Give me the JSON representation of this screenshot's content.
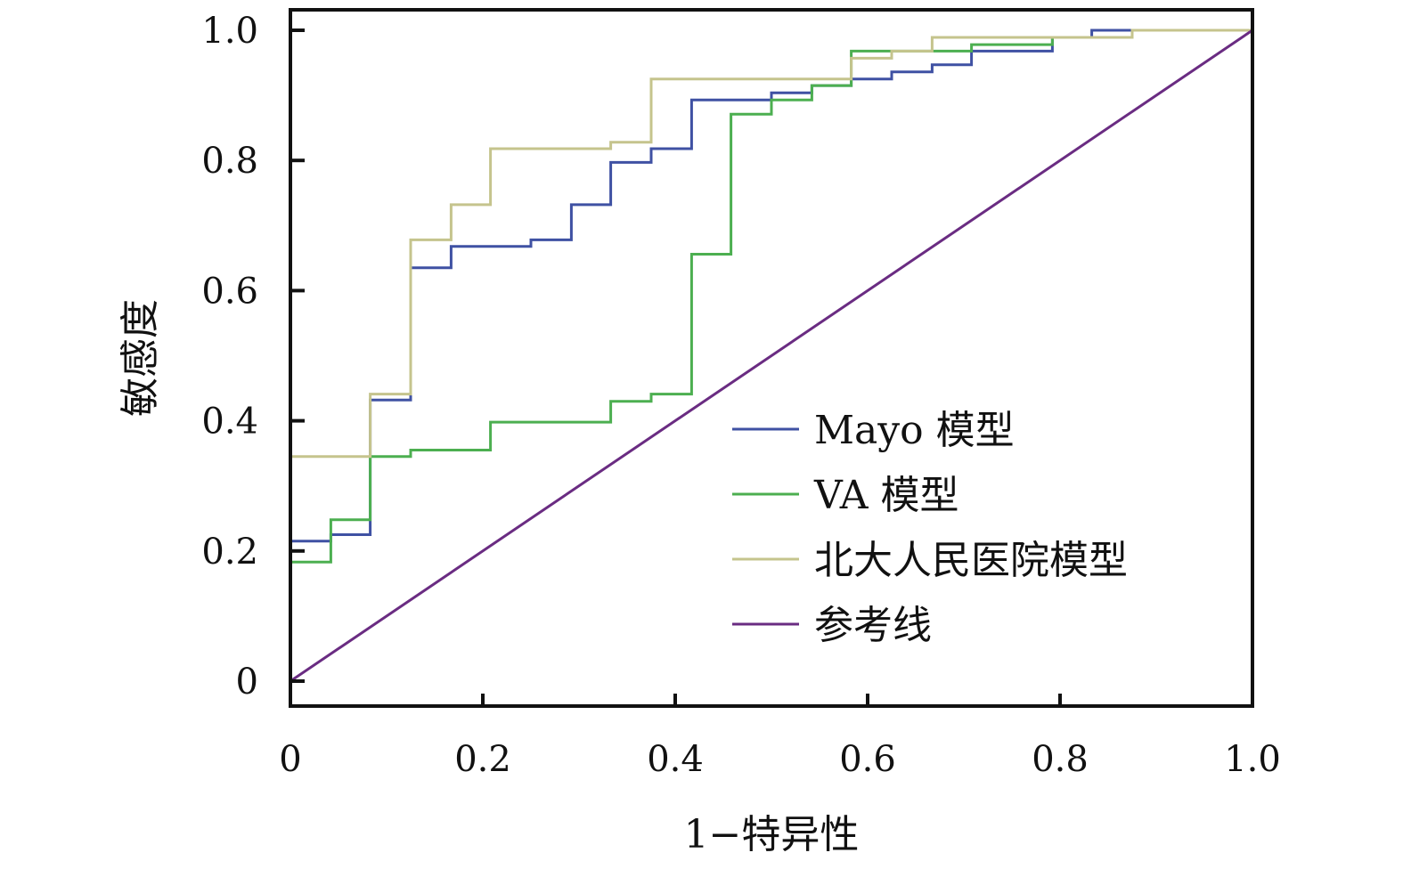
{
  "chart_data": {
    "type": "line",
    "title": "",
    "xlabel": "1−特异性",
    "ylabel": "敏感度",
    "xlim": [
      0,
      1
    ],
    "ylim": [
      0,
      1
    ],
    "grid": false,
    "legend_position": "bottom-right",
    "x_ticks": [
      {
        "value": 0,
        "label": "0"
      },
      {
        "value": 0.2,
        "label": "0.2"
      },
      {
        "value": 0.4,
        "label": "0.4"
      },
      {
        "value": 0.6,
        "label": "0.6"
      },
      {
        "value": 0.8,
        "label": "0.8"
      },
      {
        "value": 1.0,
        "label": "1.0"
      }
    ],
    "y_ticks": [
      {
        "value": 0,
        "label": "0"
      },
      {
        "value": 0.2,
        "label": "0.2"
      },
      {
        "value": 0.4,
        "label": "0.4"
      },
      {
        "value": 0.6,
        "label": "0.6"
      },
      {
        "value": 0.8,
        "label": "0.8"
      },
      {
        "value": 1.0,
        "label": "1.0"
      }
    ],
    "series": [
      {
        "name": "Mayo 模型",
        "color": "#3f51a3",
        "points": [
          [
            0,
            0
          ],
          [
            0,
            0.215
          ],
          [
            0.042,
            0.215
          ],
          [
            0.042,
            0.225
          ],
          [
            0.083,
            0.225
          ],
          [
            0.083,
            0.432
          ],
          [
            0.125,
            0.432
          ],
          [
            0.125,
            0.635
          ],
          [
            0.167,
            0.635
          ],
          [
            0.167,
            0.668
          ],
          [
            0.25,
            0.668
          ],
          [
            0.25,
            0.678
          ],
          [
            0.292,
            0.678
          ],
          [
            0.292,
            0.732
          ],
          [
            0.333,
            0.732
          ],
          [
            0.333,
            0.797
          ],
          [
            0.375,
            0.797
          ],
          [
            0.375,
            0.818
          ],
          [
            0.417,
            0.818
          ],
          [
            0.417,
            0.893
          ],
          [
            0.5,
            0.893
          ],
          [
            0.5,
            0.904
          ],
          [
            0.542,
            0.904
          ],
          [
            0.542,
            0.915
          ],
          [
            0.583,
            0.915
          ],
          [
            0.583,
            0.925
          ],
          [
            0.625,
            0.925
          ],
          [
            0.625,
            0.936
          ],
          [
            0.667,
            0.936
          ],
          [
            0.667,
            0.947
          ],
          [
            0.708,
            0.947
          ],
          [
            0.708,
            0.968
          ],
          [
            0.792,
            0.968
          ],
          [
            0.792,
            0.989
          ],
          [
            0.833,
            0.989
          ],
          [
            0.833,
            1.0
          ],
          [
            0.875,
            1.0
          ],
          [
            1.0,
            1.0
          ]
        ]
      },
      {
        "name": "VA 模型",
        "color": "#4caf50",
        "points": [
          [
            0,
            0
          ],
          [
            0,
            0.183
          ],
          [
            0.042,
            0.183
          ],
          [
            0.042,
            0.248
          ],
          [
            0.083,
            0.248
          ],
          [
            0.083,
            0.345
          ],
          [
            0.125,
            0.345
          ],
          [
            0.125,
            0.355
          ],
          [
            0.208,
            0.355
          ],
          [
            0.208,
            0.398
          ],
          [
            0.333,
            0.398
          ],
          [
            0.333,
            0.43
          ],
          [
            0.375,
            0.43
          ],
          [
            0.375,
            0.441
          ],
          [
            0.417,
            0.441
          ],
          [
            0.417,
            0.656
          ],
          [
            0.458,
            0.656
          ],
          [
            0.458,
            0.871
          ],
          [
            0.5,
            0.871
          ],
          [
            0.5,
            0.893
          ],
          [
            0.542,
            0.893
          ],
          [
            0.542,
            0.915
          ],
          [
            0.583,
            0.915
          ],
          [
            0.583,
            0.968
          ],
          [
            0.708,
            0.968
          ],
          [
            0.708,
            0.978
          ],
          [
            0.792,
            0.978
          ],
          [
            0.792,
            0.989
          ],
          [
            0.875,
            0.989
          ],
          [
            0.875,
            1.0
          ],
          [
            1.0,
            1.0
          ]
        ]
      },
      {
        "name": "北大人民医院模型",
        "color": "#c5c48d",
        "points": [
          [
            0,
            0
          ],
          [
            0,
            0.345
          ],
          [
            0.083,
            0.345
          ],
          [
            0.083,
            0.441
          ],
          [
            0.125,
            0.441
          ],
          [
            0.125,
            0.678
          ],
          [
            0.167,
            0.678
          ],
          [
            0.167,
            0.732
          ],
          [
            0.208,
            0.732
          ],
          [
            0.208,
            0.818
          ],
          [
            0.333,
            0.818
          ],
          [
            0.333,
            0.828
          ],
          [
            0.375,
            0.828
          ],
          [
            0.375,
            0.925
          ],
          [
            0.583,
            0.925
          ],
          [
            0.583,
            0.957
          ],
          [
            0.625,
            0.957
          ],
          [
            0.625,
            0.968
          ],
          [
            0.667,
            0.968
          ],
          [
            0.667,
            0.989
          ],
          [
            0.875,
            0.989
          ],
          [
            0.875,
            1.0
          ],
          [
            1.0,
            1.0
          ]
        ]
      },
      {
        "name": "参考线",
        "color": "#6a2c82",
        "points": [
          [
            0,
            0
          ],
          [
            1.0,
            1.0
          ]
        ]
      }
    ]
  }
}
